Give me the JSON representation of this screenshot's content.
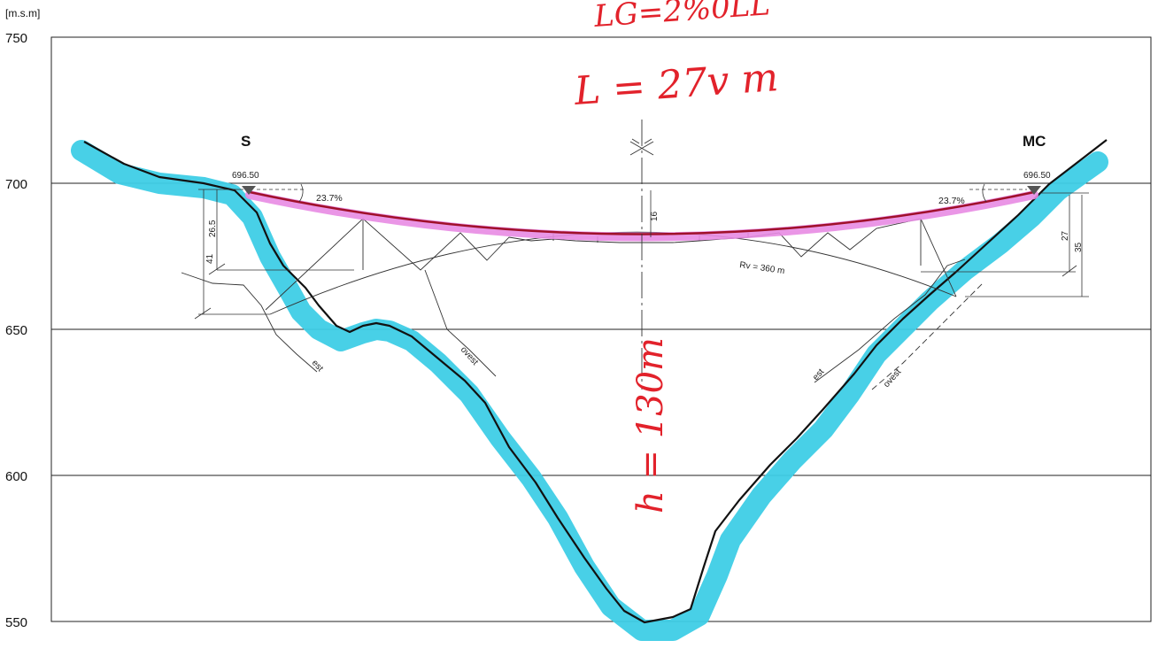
{
  "axis": {
    "unit": "[m.s.m]",
    "ticks": [
      "750",
      "700",
      "650",
      "600",
      "550"
    ],
    "tick_values": [
      750,
      700,
      650,
      600,
      550
    ]
  },
  "stations": {
    "left": "S",
    "right": "MC"
  },
  "deck": {
    "left_elevation": "696.50",
    "right_elevation": "696.50",
    "left_grade": "23.7%",
    "right_grade": "23.7%",
    "midspan_depth": "16"
  },
  "arch": {
    "radius_label": "Rv = 360 m"
  },
  "dimensions": {
    "left_outer": "41",
    "left_inner": "26.5",
    "right_inner": "27",
    "right_outer": "35"
  },
  "geology": {
    "left_est": "est",
    "left_ovest": "ovest",
    "right_est": "est",
    "right_ovest": "ovest"
  },
  "handwriting": {
    "top_scribble": "LG=2%0LL",
    "span_note": "L = 27v m",
    "height_note": "h = 130m"
  },
  "colors": {
    "terrain_highlight": "#3ecde6",
    "deck_highlight": "#e88be3",
    "deck_line": "#a0102a",
    "handwriting": "#e2222b"
  }
}
